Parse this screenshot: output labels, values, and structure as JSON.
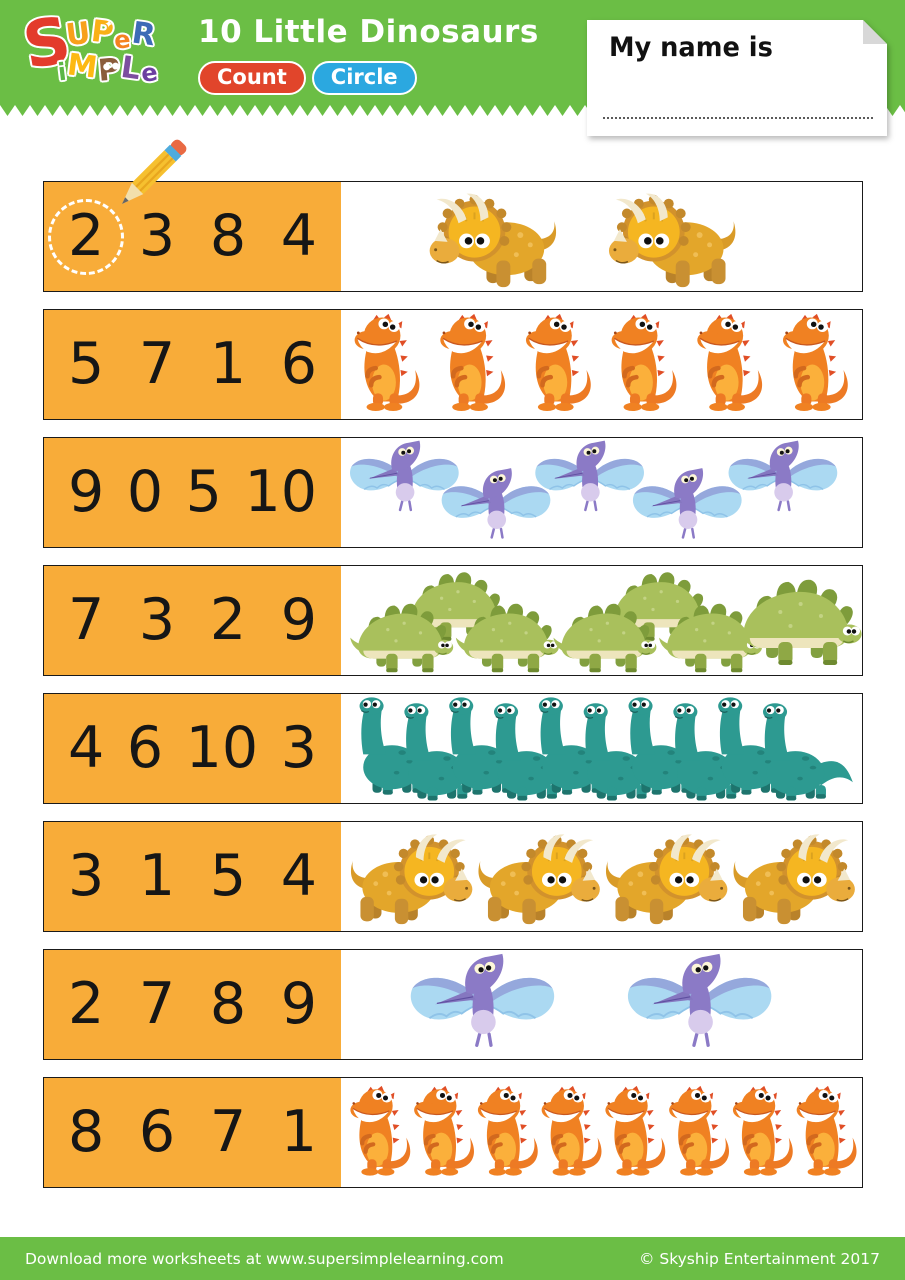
{
  "header": {
    "logo": {
      "big_letter": {
        "ch": "S",
        "color": "#E33B2C"
      },
      "word_top": [
        {
          "ch": "U",
          "color": "#F7A01B"
        },
        {
          "ch": "P",
          "color": "#F9B017",
          "deco": "star"
        },
        {
          "ch": "e",
          "color": "#F58220"
        },
        {
          "ch": "R",
          "color": "#3D6BB6"
        }
      ],
      "word_bottom": [
        {
          "ch": "i",
          "color": "#5BB747"
        },
        {
          "ch": "M",
          "color": "#FDB913"
        },
        {
          "ch": "P",
          "color": "#8A5D3B",
          "deco": "owl"
        },
        {
          "ch": "L",
          "color": "#7C4E9F"
        },
        {
          "ch": "e",
          "color": "#6B3FA0"
        }
      ]
    },
    "title": "10 Little Dinosaurs",
    "badges": [
      {
        "label": "Count",
        "color": "#E1452B"
      },
      {
        "label": "Circle",
        "color": "#2BA8E0"
      }
    ],
    "name_box": {
      "label": "My name is"
    }
  },
  "rows": [
    {
      "numbers": [
        "2",
        "3",
        "8",
        "4"
      ],
      "circled_index": 0,
      "dino": "triceratops",
      "count": 2,
      "flip": false,
      "placements": [
        [
          88,
          8,
          1.0
        ],
        [
          268,
          8,
          1.0
        ]
      ]
    },
    {
      "numbers": [
        "5",
        "7",
        "1",
        "6"
      ],
      "circled_index": null,
      "dino": "trex",
      "count": 6,
      "flip": false,
      "placements": [
        [
          10,
          4,
          0.92
        ],
        [
          96,
          4,
          0.92
        ],
        [
          182,
          4,
          0.92
        ],
        [
          268,
          4,
          0.92
        ],
        [
          354,
          4,
          0.92
        ],
        [
          440,
          4,
          0.92
        ]
      ]
    },
    {
      "numbers": [
        "9",
        "0",
        "5",
        "10"
      ],
      "circled_index": null,
      "dino": "ptero",
      "count": 5,
      "flip": false,
      "placements": [
        [
          6,
          2,
          0.72
        ],
        [
          98,
          30,
          0.72
        ],
        [
          192,
          2,
          0.72
        ],
        [
          290,
          30,
          0.72
        ],
        [
          386,
          2,
          0.72
        ]
      ]
    },
    {
      "numbers": [
        "7",
        "3",
        "2",
        "9"
      ],
      "circled_index": null,
      "dino": "stego",
      "count": 7,
      "flip": false,
      "placements": [
        [
          60,
          0,
          0.82
        ],
        [
          6,
          32,
          0.82
        ],
        [
          112,
          32,
          0.82
        ],
        [
          264,
          0,
          0.82
        ],
        [
          210,
          32,
          0.82
        ],
        [
          316,
          32,
          0.82
        ],
        [
          390,
          6,
          1.02
        ]
      ]
    },
    {
      "numbers": [
        "4",
        "6",
        "10",
        "3"
      ],
      "circled_index": null,
      "dino": "bronto",
      "count": 10,
      "flip": false,
      "placements": [
        [
          0,
          2,
          0.93
        ],
        [
          45,
          8,
          0.93
        ],
        [
          90,
          2,
          0.93
        ],
        [
          135,
          8,
          0.93
        ],
        [
          180,
          2,
          0.93
        ],
        [
          225,
          8,
          0.93
        ],
        [
          270,
          2,
          0.93
        ],
        [
          315,
          8,
          0.93
        ],
        [
          360,
          2,
          0.93
        ],
        [
          405,
          8,
          0.93
        ]
      ]
    },
    {
      "numbers": [
        "3",
        "1",
        "5",
        "4"
      ],
      "circled_index": null,
      "dino": "triceratops",
      "count": 4,
      "flip": true,
      "placements": [
        [
          8,
          9,
          0.96
        ],
        [
          136,
          9,
          0.96
        ],
        [
          264,
          9,
          0.96
        ],
        [
          392,
          9,
          0.96
        ]
      ]
    },
    {
      "numbers": [
        "2",
        "7",
        "8",
        "9"
      ],
      "circled_index": null,
      "dino": "ptero",
      "count": 2,
      "flip": false,
      "placements": [
        [
          66,
          3,
          0.95
        ],
        [
          284,
          3,
          0.95
        ]
      ]
    },
    {
      "numbers": [
        "8",
        "6",
        "7",
        "1"
      ],
      "circled_index": null,
      "dino": "trex",
      "count": 8,
      "flip": false,
      "placements": [
        [
          6,
          8,
          0.85
        ],
        [
          70,
          8,
          0.85
        ],
        [
          134,
          8,
          0.85
        ],
        [
          198,
          8,
          0.85
        ],
        [
          262,
          8,
          0.85
        ],
        [
          326,
          8,
          0.85
        ],
        [
          390,
          8,
          0.85
        ],
        [
          454,
          8,
          0.85
        ]
      ]
    }
  ],
  "footer": {
    "left": "Download more worksheets at www.supersimplelearning.com",
    "right": "© Skyship Entertainment 2017"
  },
  "colors": {
    "header_green": "#6BBE45",
    "panel_orange": "#F8AC39",
    "row_border": "#1A1A1A",
    "number_color": "#161616",
    "circle_mark": "#FFFFFF"
  }
}
